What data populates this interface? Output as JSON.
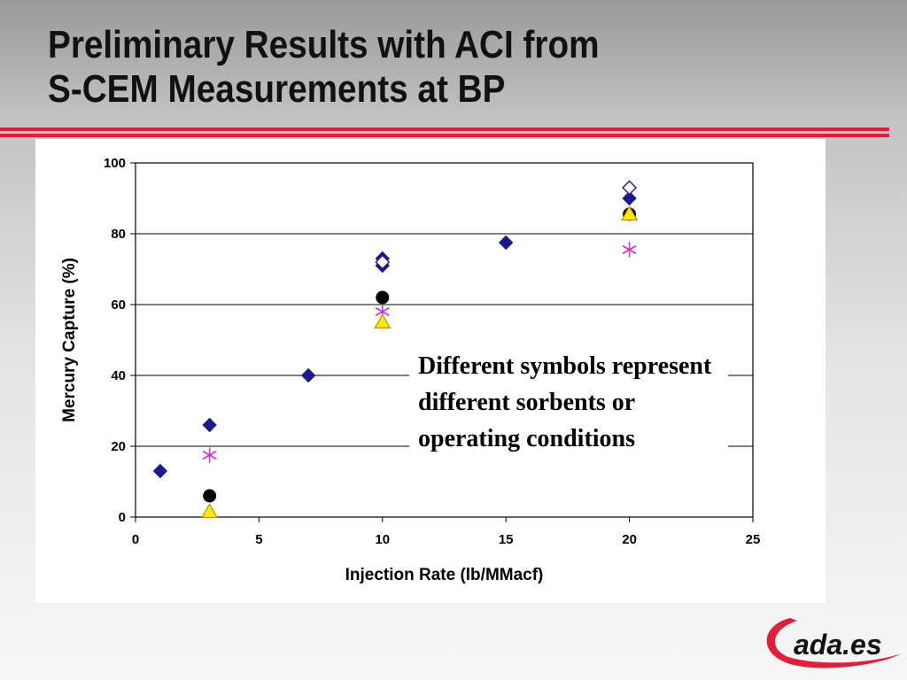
{
  "slide": {
    "title_line1": "Preliminary Results with ACI from",
    "title_line2": "S-CEM Measurements at BP",
    "note": "Different symbols represent different sorbents or operating conditions",
    "logo_text": "ada.es"
  },
  "colors": {
    "accent_red": "#e0203a",
    "navy": "#1a1a8c",
    "magenta": "#cc33cc",
    "yellow": "#ffee00"
  },
  "chart_data": {
    "type": "scatter",
    "xlabel": "Injection Rate (lb/MMacf)",
    "ylabel": "Mercury Capture (%)",
    "xlim": [
      0,
      25
    ],
    "ylim": [
      0,
      100
    ],
    "xticks": [
      0,
      5,
      10,
      15,
      20,
      25
    ],
    "yticks": [
      0,
      20,
      40,
      60,
      80,
      100
    ],
    "grid": "horizontal",
    "series": [
      {
        "marker": "diamond-filled",
        "color": "#1a1a8c",
        "points": [
          [
            1,
            13
          ],
          [
            3,
            26
          ],
          [
            7,
            40
          ],
          [
            10,
            73
          ],
          [
            10,
            71
          ],
          [
            15,
            77.5
          ],
          [
            20,
            90
          ]
        ]
      },
      {
        "marker": "diamond-open",
        "color": "#1a1a8c",
        "points": [
          [
            10,
            72
          ],
          [
            20,
            93
          ]
        ]
      },
      {
        "marker": "asterisk",
        "color": "#cc33cc",
        "points": [
          [
            3,
            17.5
          ],
          [
            10,
            58
          ],
          [
            20,
            75.5
          ]
        ]
      },
      {
        "marker": "circle-filled",
        "color": "#000000",
        "points": [
          [
            3,
            6
          ],
          [
            10,
            62
          ],
          [
            20,
            85.5
          ]
        ]
      },
      {
        "marker": "triangle-filled",
        "color": "#ffee00",
        "points": [
          [
            3,
            1.5
          ],
          [
            10,
            55
          ],
          [
            20,
            85.5
          ]
        ]
      }
    ]
  }
}
